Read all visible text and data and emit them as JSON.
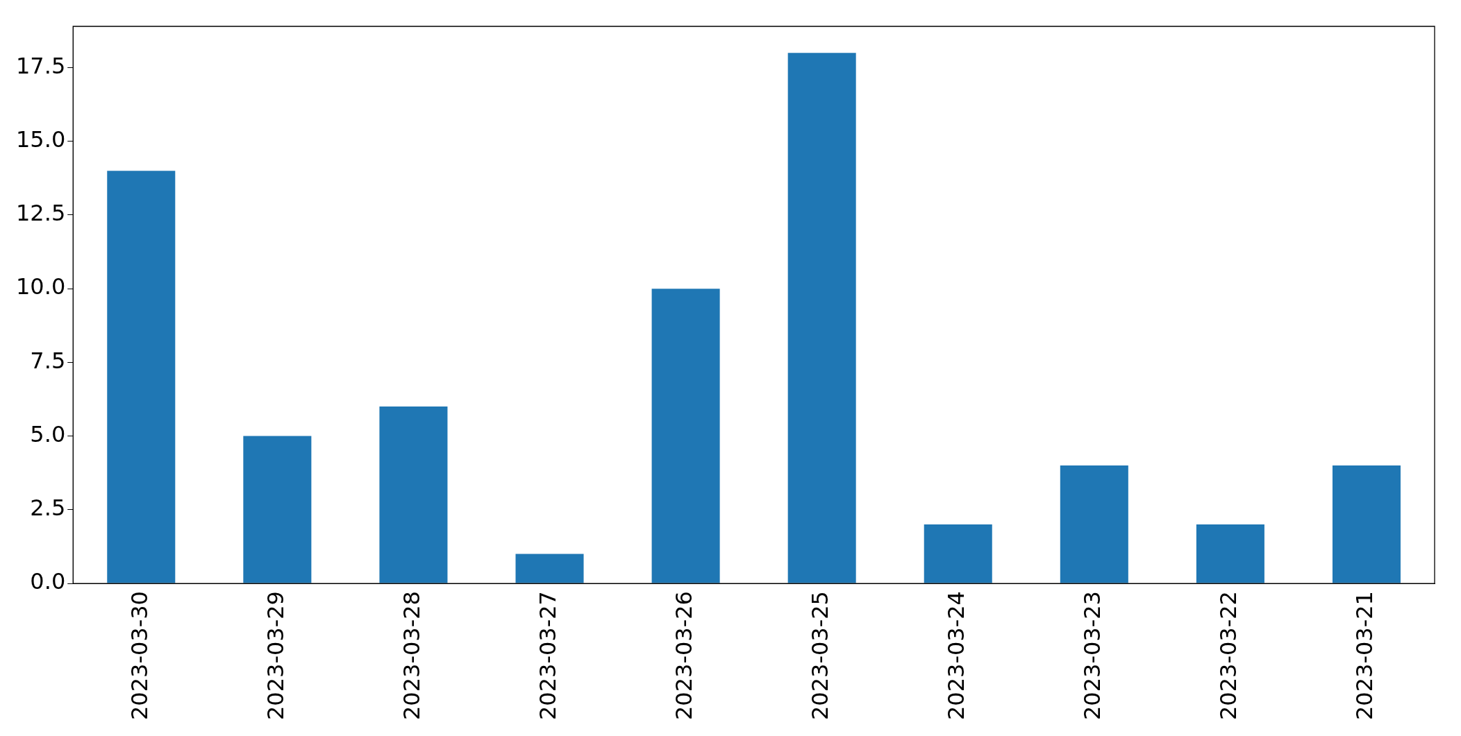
{
  "chart_data": {
    "type": "bar",
    "categories": [
      "2023-03-30",
      "2023-03-29",
      "2023-03-28",
      "2023-03-27",
      "2023-03-26",
      "2023-03-25",
      "2023-03-24",
      "2023-03-23",
      "2023-03-22",
      "2023-03-21"
    ],
    "values": [
      14,
      5,
      6,
      1,
      10,
      18,
      2,
      4,
      2,
      4
    ],
    "color": "#1f77b4",
    "ylim": [
      0,
      18.9
    ],
    "yticks": [
      {
        "value": 0,
        "label": "0.0"
      },
      {
        "value": 2.5,
        "label": "2.5"
      },
      {
        "value": 5,
        "label": "5.0"
      },
      {
        "value": 7.5,
        "label": "7.5"
      },
      {
        "value": 10,
        "label": "10.0"
      },
      {
        "value": 12.5,
        "label": "12.5"
      },
      {
        "value": 15,
        "label": "15.0"
      },
      {
        "value": 17.5,
        "label": "17.5"
      }
    ],
    "grid": false,
    "legend": false
  }
}
